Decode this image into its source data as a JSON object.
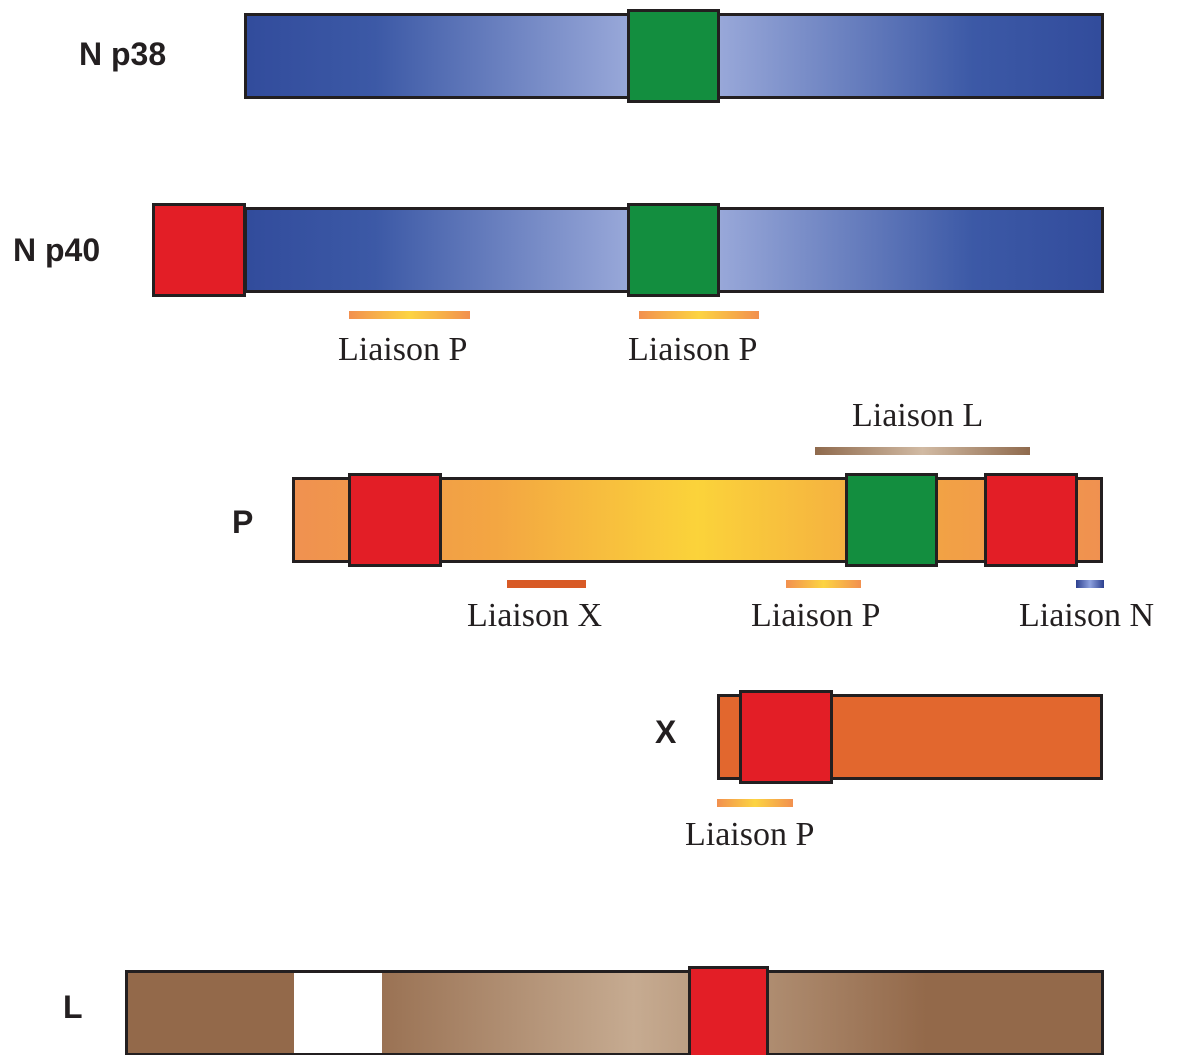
{
  "proteins": {
    "n_p38": {
      "label": "N p38"
    },
    "n_p40": {
      "label": "N p40",
      "binding": [
        {
          "label": "Liaison P"
        },
        {
          "label": "Liaison P"
        }
      ]
    },
    "p": {
      "label": "P",
      "binding_top": {
        "label": "Liaison L"
      },
      "binding": [
        {
          "label": "Liaison X"
        },
        {
          "label": "Liaison P"
        },
        {
          "label": "Liaison N"
        }
      ]
    },
    "x": {
      "label": "X",
      "binding": [
        {
          "label": "Liaison P"
        }
      ]
    },
    "l": {
      "label": "L"
    }
  },
  "colors": {
    "n_bar": "#3c59a6",
    "p_bar": "#f3a642",
    "x_bar": "#e2672e",
    "l_bar": "#93694a",
    "red_domain": "#e31e26",
    "green_domain": "#138e3f",
    "outline": "#231f20"
  }
}
